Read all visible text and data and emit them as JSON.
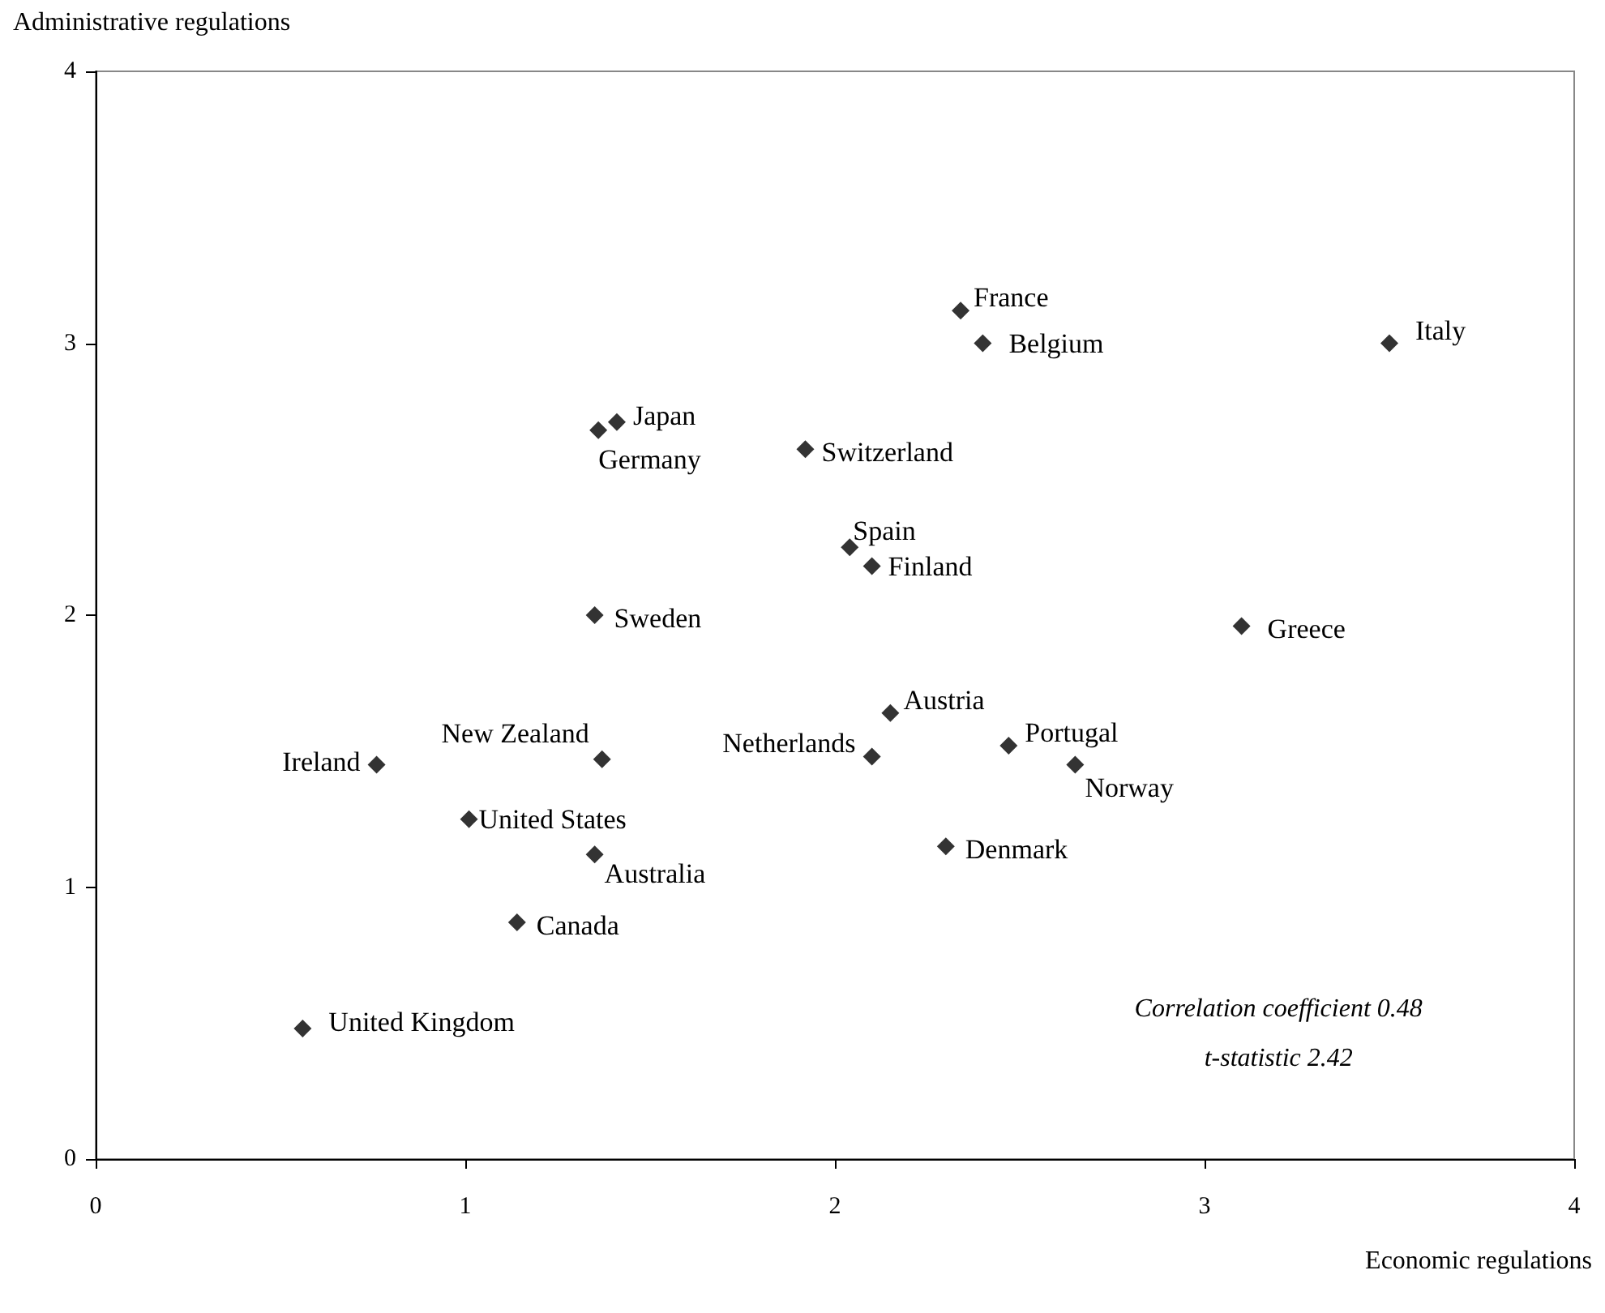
{
  "chart_data": {
    "type": "scatter",
    "xlabel": "Economic regulations",
    "ylabel": "Administrative regulations",
    "x": [
      0.56,
      0.76,
      1.37,
      1.01,
      1.35,
      1.14,
      1.35,
      1.36,
      1.41,
      1.92,
      2.04,
      2.1,
      2.34,
      2.4,
      3.5,
      3.1,
      2.15,
      2.1,
      2.47,
      2.65,
      2.3
    ],
    "values": [
      0.48,
      1.45,
      1.47,
      1.25,
      1.12,
      0.87,
      2.0,
      2.68,
      2.71,
      2.61,
      2.25,
      2.18,
      3.12,
      3.0,
      3.0,
      1.96,
      1.64,
      1.48,
      1.52,
      1.45,
      1.15
    ],
    "color": "#000000",
    "marker": "diamond",
    "grid": false,
    "xlim": [
      0,
      4
    ],
    "xticks": [
      0,
      1,
      2,
      3,
      4
    ],
    "ylim": [
      0,
      4
    ],
    "yticks": [
      0,
      1,
      2,
      3,
      4
    ],
    "annotations": [
      {
        "text": "United Kingdom",
        "x": 0.56,
        "y": 0.48
      },
      {
        "text": "Ireland",
        "x": 0.76,
        "y": 1.45
      },
      {
        "text": "New Zealand",
        "x": 1.37,
        "y": 1.47
      },
      {
        "text": "United States",
        "x": 1.01,
        "y": 1.25
      },
      {
        "text": "Australia",
        "x": 1.35,
        "y": 1.12
      },
      {
        "text": "Canada",
        "x": 1.14,
        "y": 0.87
      },
      {
        "text": "Sweden",
        "x": 1.35,
        "y": 2.0
      },
      {
        "text": "Germany",
        "x": 1.36,
        "y": 2.68
      },
      {
        "text": "Japan",
        "x": 1.41,
        "y": 2.71
      },
      {
        "text": "Switzerland",
        "x": 1.92,
        "y": 2.61
      },
      {
        "text": "Spain",
        "x": 2.04,
        "y": 2.25
      },
      {
        "text": "Finland",
        "x": 2.1,
        "y": 2.18
      },
      {
        "text": "France",
        "x": 2.34,
        "y": 3.12
      },
      {
        "text": "Belgium",
        "x": 2.4,
        "y": 3.0
      },
      {
        "text": "Italy",
        "x": 3.5,
        "y": 3.0
      },
      {
        "text": "Greece",
        "x": 3.1,
        "y": 1.96
      },
      {
        "text": "Austria",
        "x": 2.15,
        "y": 1.64
      },
      {
        "text": "Netherlands",
        "x": 2.1,
        "y": 1.48
      },
      {
        "text": "Portugal",
        "x": 2.47,
        "y": 1.52
      },
      {
        "text": "Norway",
        "x": 2.65,
        "y": 1.45
      },
      {
        "text": "Denmark",
        "x": 2.3,
        "y": 1.15
      },
      "Correlation coefficient 0.48",
      "t-statistic 2.42"
    ]
  }
}
